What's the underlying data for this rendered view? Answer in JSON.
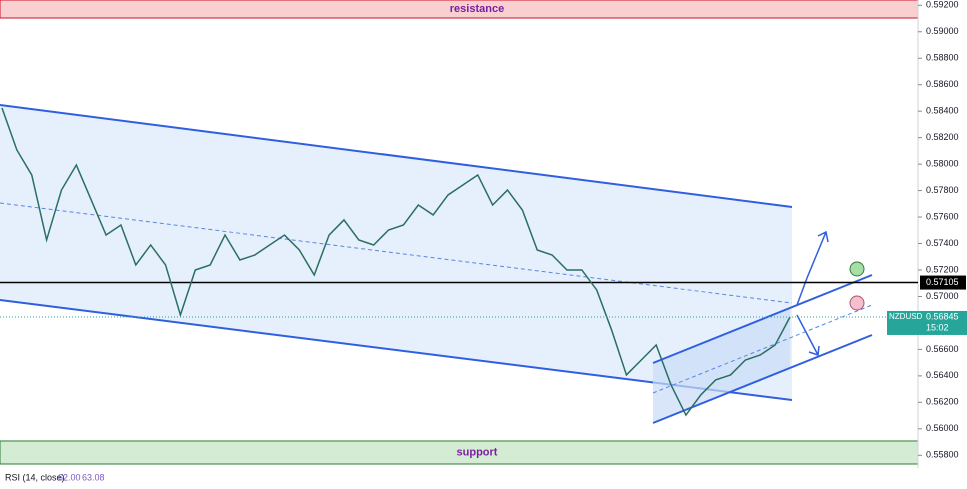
{
  "chart_data": {
    "type": "line",
    "symbol": "NZDUSD",
    "countdown": "15:02",
    "last_price": 0.56845,
    "key_level": 0.57105,
    "resistance": {
      "label": "resistance",
      "range": [
        0.59104,
        0.5924
      ],
      "color": "#f8d0d0"
    },
    "support": {
      "label": "support",
      "range": [
        0.55734,
        0.55908
      ],
      "color": "#d4ecd4"
    },
    "ylim": [
      0.557,
      0.5924
    ],
    "yticks": [
      {
        "value": 0.592,
        "label": "0.59200"
      },
      {
        "value": 0.59,
        "label": "0.59000"
      },
      {
        "value": 0.588,
        "label": "0.58800"
      },
      {
        "value": 0.586,
        "label": "0.58600"
      },
      {
        "value": 0.584,
        "label": "0.58400"
      },
      {
        "value": 0.582,
        "label": "0.58200"
      },
      {
        "value": 0.58,
        "label": "0.58000"
      },
      {
        "value": 0.578,
        "label": "0.57800"
      },
      {
        "value": 0.576,
        "label": "0.57600"
      },
      {
        "value": 0.574,
        "label": "0.57400"
      },
      {
        "value": 0.572,
        "label": "0.57200"
      },
      {
        "value": 0.57,
        "label": "0.57000"
      },
      {
        "value": 0.566,
        "label": "0.56600"
      },
      {
        "value": 0.564,
        "label": "0.56400"
      },
      {
        "value": 0.562,
        "label": "0.56200"
      },
      {
        "value": 0.56,
        "label": "0.56000"
      },
      {
        "value": 0.558,
        "label": "0.55800"
      }
    ],
    "categories": [
      null,
      null,
      null,
      null,
      null,
      null,
      null,
      null,
      null,
      null,
      null,
      null,
      null,
      null,
      null,
      null,
      null,
      null,
      null,
      null,
      null,
      null,
      null,
      null,
      null,
      null,
      null,
      null,
      null,
      null,
      null,
      null,
      null,
      null,
      null,
      null,
      null,
      null,
      null,
      null,
      null,
      null,
      null,
      null,
      null,
      null,
      null,
      null,
      null,
      null,
      null,
      null,
      null,
      null
    ],
    "series": [
      {
        "name": "NZDUSD",
        "color": "#2a6f62",
        "values": [
          0.58424,
          0.58107,
          0.57918,
          0.57427,
          0.57804,
          0.57993,
          0.57729,
          0.57464,
          0.5754,
          0.57238,
          0.57389,
          0.57238,
          0.5686,
          0.572,
          0.57238,
          0.57464,
          0.57276,
          0.57313,
          0.57389,
          0.57464,
          0.57351,
          0.57162,
          0.57464,
          0.57578,
          0.57427,
          0.57389,
          0.57502,
          0.5754,
          0.57691,
          0.57616,
          0.57767,
          0.57842,
          0.57918,
          0.57691,
          0.57804,
          0.57653,
          0.57351,
          0.57313,
          0.572,
          0.572,
          0.57049,
          0.56747,
          0.56407,
          0.5652,
          0.56633,
          0.56331,
          0.56104,
          0.56256,
          0.56369,
          0.56407,
          0.5652,
          0.56558,
          0.56633,
          0.56845
        ]
      }
    ],
    "rsi": {
      "label": "RSI (14, close)",
      "values": [
        {
          "value": 62,
          "label": "62.00"
        },
        63.08
      ]
    }
  }
}
